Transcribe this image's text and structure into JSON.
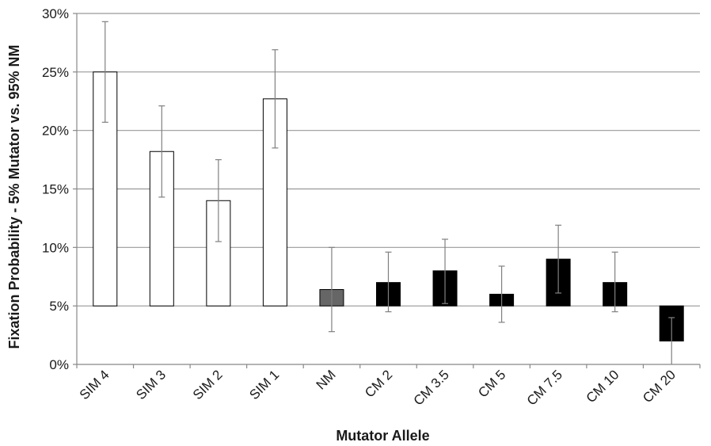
{
  "chart_data": {
    "type": "bar",
    "title": "",
    "xlabel": "Mutator Allele",
    "ylabel": "Fixation Probability - 5% Mutator vs. 95% NM",
    "categories": [
      "SIM 4",
      "SIM 3",
      "SIM 2",
      "SIM 1",
      "NM",
      "CM 2",
      "CM 3.5",
      "CM 5",
      "CM 7.5",
      "CM 10",
      "CM 20"
    ],
    "values": [
      25.0,
      18.2,
      14.0,
      22.7,
      6.4,
      7.0,
      8.0,
      6.0,
      9.0,
      7.0,
      2.0
    ],
    "error_low": [
      20.7,
      14.3,
      10.5,
      18.5,
      2.8,
      4.5,
      5.2,
      3.6,
      6.1,
      4.5,
      0.0
    ],
    "error_high": [
      29.3,
      22.1,
      17.5,
      26.9,
      10.0,
      9.6,
      10.7,
      8.4,
      11.9,
      9.6,
      4.0
    ],
    "baseline": 5,
    "ylim": [
      0,
      30
    ],
    "yticks": [
      0,
      5,
      10,
      15,
      20,
      25,
      30
    ],
    "ytick_labels": [
      "0%",
      "5%",
      "10%",
      "15%",
      "20%",
      "25%",
      "30%"
    ],
    "grid": true,
    "legend": "none",
    "bar_colors": [
      "#ffffff",
      "#ffffff",
      "#ffffff",
      "#ffffff",
      "#666666",
      "#000000",
      "#000000",
      "#000000",
      "#000000",
      "#000000",
      "#000000"
    ],
    "colors": {
      "gridline": "#999999",
      "axis": "#888888",
      "bar_edge": "#000000",
      "error_bar": "#808080"
    }
  }
}
